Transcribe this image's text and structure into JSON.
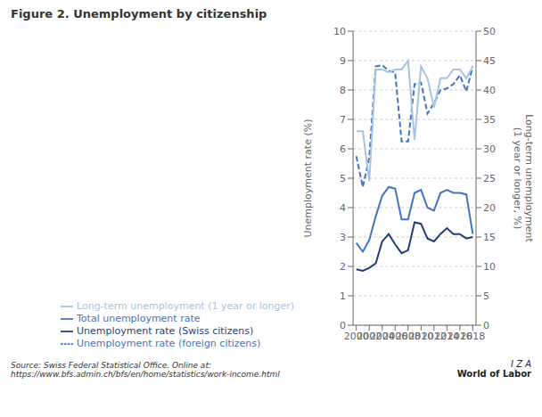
{
  "chart_data": {
    "type": "line",
    "title": "Figure 2. Unemployment by citizenship",
    "x": [
      2000,
      2001,
      2002,
      2003,
      2004,
      2005,
      2006,
      2007,
      2008,
      2009,
      2010,
      2011,
      2012,
      2013,
      2014,
      2015,
      2016,
      2017,
      2018
    ],
    "xlim": [
      1999.5,
      2018.5
    ],
    "xticks": [
      2000,
      2002,
      2004,
      2006,
      2008,
      2010,
      2012,
      2014,
      2016,
      2018
    ],
    "ylabel": "Unemployment rate (%)",
    "y2label": "Long-term unemployment\n(1 year or longer, %)",
    "ylim": [
      0,
      10
    ],
    "yticks": [
      0,
      1,
      2,
      3,
      4,
      5,
      6,
      7,
      8,
      9,
      10
    ],
    "y2lim": [
      0,
      50
    ],
    "y2ticks": [
      0,
      5,
      10,
      15,
      20,
      25,
      30,
      35,
      40,
      45,
      50
    ],
    "grid": true,
    "legend": "bottom",
    "annotations": [
      "Source: Swiss Federal Statistical Office. Online at: https://www.bfs.admin.ch/bfs/en/home/statistics/work-income.html",
      "I Z A",
      "World of Labor"
    ],
    "series": [
      {
        "name": "Total unemployment rate",
        "color": "#4472C4",
        "line_style": "solid",
        "values": [
          2.8,
          2.5,
          2.9,
          3.7,
          4.4,
          4.7,
          4.65,
          3.6,
          3.6,
          4.5,
          4.6,
          4.0,
          3.9,
          4.5,
          4.6,
          4.5,
          4.5,
          4.45,
          3.1
        ]
      },
      {
        "name": "Unemployment rate (Swiss citizens)",
        "color": "#1F3F7A",
        "line_style": "solid",
        "values": [
          1.9,
          1.85,
          1.95,
          2.1,
          2.85,
          3.1,
          2.75,
          2.45,
          2.55,
          3.5,
          3.45,
          2.95,
          2.85,
          3.1,
          3.3,
          3.1,
          3.1,
          2.95,
          3.0
        ]
      },
      {
        "name": "Unemployment rate (foreign citizens)",
        "color": "#4472C4",
        "line_style": "dashed",
        "values": [
          5.75,
          4.7,
          5.7,
          8.8,
          8.85,
          8.65,
          8.6,
          6.25,
          6.25,
          8.2,
          8.25,
          7.2,
          7.55,
          8.0,
          8.05,
          8.2,
          8.5,
          7.95,
          8.8
        ]
      },
      {
        "name": "Long-term unemployment (1 year or longer)",
        "color": "#A8C4E0",
        "line_style": "solid",
        "axis": "y2",
        "values": [
          33,
          33,
          24.5,
          43.5,
          43.5,
          43,
          43.5,
          43.5,
          45,
          31.5,
          44,
          42,
          37,
          42,
          42,
          43.5,
          43.5,
          42,
          44
        ]
      }
    ]
  }
}
